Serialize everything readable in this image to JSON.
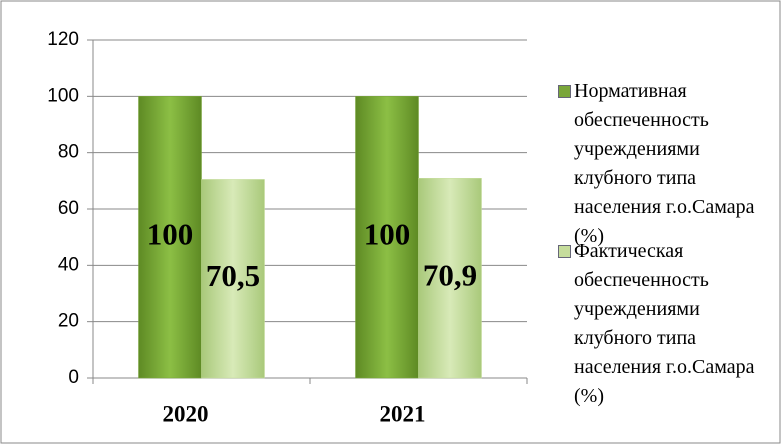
{
  "chart_data": {
    "type": "bar",
    "categories": [
      "2020",
      "2021"
    ],
    "series": [
      {
        "name": "Нормативная обеспеченность учреждениями клубного типа населения г.о.Самара (%)",
        "color": "#7aa63a",
        "values": [
          100,
          100
        ]
      },
      {
        "name": "Фактическая обеспеченность учреждениями клубного типа населения г.о.Самара (%)",
        "color": "#c6dd9c",
        "values": [
          70.5,
          70.9
        ],
        "value_labels": [
          "70,5",
          "70,9"
        ]
      }
    ],
    "ylim": [
      0,
      120
    ],
    "yticks": [
      0,
      20,
      40,
      60,
      80,
      100,
      120
    ],
    "grid": true,
    "legend": "right"
  }
}
